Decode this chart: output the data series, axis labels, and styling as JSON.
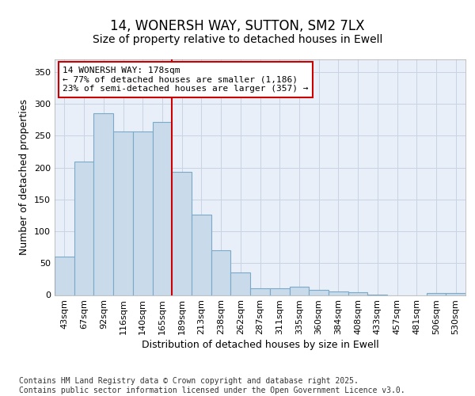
{
  "title1": "14, WONERSH WAY, SUTTON, SM2 7LX",
  "title2": "Size of property relative to detached houses in Ewell",
  "xlabel": "Distribution of detached houses by size in Ewell",
  "ylabel": "Number of detached properties",
  "categories": [
    "43sqm",
    "67sqm",
    "92sqm",
    "116sqm",
    "140sqm",
    "165sqm",
    "189sqm",
    "213sqm",
    "238sqm",
    "262sqm",
    "287sqm",
    "311sqm",
    "335sqm",
    "360sqm",
    "384sqm",
    "408sqm",
    "433sqm",
    "457sqm",
    "481sqm",
    "506sqm",
    "530sqm"
  ],
  "values": [
    60,
    210,
    285,
    257,
    257,
    272,
    193,
    126,
    70,
    35,
    10,
    10,
    13,
    8,
    6,
    4,
    1,
    0,
    0,
    3,
    3
  ],
  "bar_color": "#c9daea",
  "bar_edge_color": "#7aaac8",
  "vline_color": "#cc0000",
  "annotation_text": "14 WONERSH WAY: 178sqm\n← 77% of detached houses are smaller (1,186)\n23% of semi-detached houses are larger (357) →",
  "annotation_box_color": "white",
  "annotation_box_edge_color": "#cc0000",
  "ylim": [
    0,
    370
  ],
  "yticks": [
    0,
    50,
    100,
    150,
    200,
    250,
    300,
    350
  ],
  "grid_color": "#c8d4e4",
  "plot_bg_color": "#e8eff8",
  "fig_bg_color": "#ffffff",
  "footer_text": "Contains HM Land Registry data © Crown copyright and database right 2025.\nContains public sector information licensed under the Open Government Licence v3.0.",
  "title_fontsize": 12,
  "subtitle_fontsize": 10,
  "tick_fontsize": 8,
  "ylabel_fontsize": 9,
  "xlabel_fontsize": 9,
  "footer_fontsize": 7,
  "annotation_fontsize": 8
}
